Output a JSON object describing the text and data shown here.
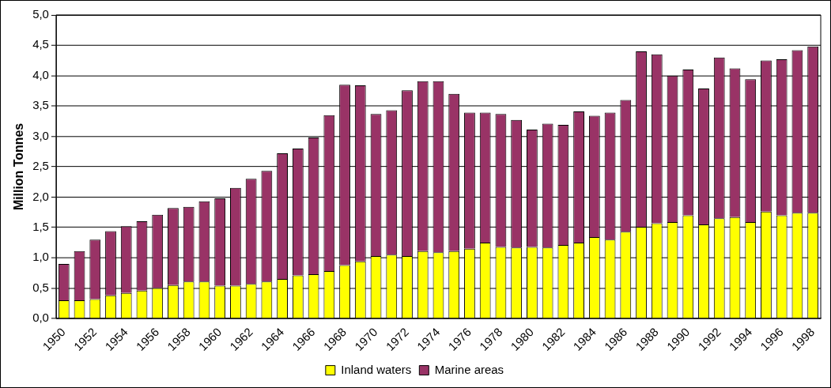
{
  "chart_data": {
    "type": "bar",
    "stacked": true,
    "ylabel": "Million Tonnes",
    "categories": [
      "1950",
      null,
      "1952",
      null,
      "1954",
      null,
      "1956",
      null,
      "1958",
      null,
      "1960",
      null,
      "1962",
      null,
      "1964",
      null,
      "1966",
      null,
      "1968",
      null,
      "1970",
      null,
      "1972",
      null,
      "1974",
      null,
      "1976",
      null,
      "1978",
      null,
      "1980",
      null,
      "1982",
      null,
      "1984",
      null,
      "1986",
      null,
      "1988",
      null,
      "1990",
      null,
      "1992",
      null,
      "1994",
      null,
      "1996",
      null,
      "1998"
    ],
    "series": [
      {
        "name": "Inland waters",
        "color": "#ffff00",
        "values": [
          0.3,
          0.3,
          0.32,
          0.38,
          0.42,
          0.46,
          0.5,
          0.55,
          0.61,
          0.61,
          0.54,
          0.54,
          0.57,
          0.61,
          0.65,
          0.71,
          0.73,
          0.78,
          0.88,
          0.94,
          1.03,
          1.05,
          1.03,
          1.11,
          1.09,
          1.11,
          1.15,
          1.25,
          1.18,
          1.17,
          1.18,
          1.17,
          1.21,
          1.25,
          1.34,
          1.3,
          1.43,
          1.51,
          1.57,
          1.59,
          1.7,
          1.55,
          1.65,
          1.67,
          1.59,
          1.76,
          1.7,
          1.74,
          1.74
        ]
      },
      {
        "name": "Marine areas",
        "color": "#993366",
        "values": [
          0.6,
          0.81,
          0.98,
          1.06,
          1.1,
          1.14,
          1.21,
          1.27,
          1.23,
          1.32,
          1.44,
          1.61,
          1.73,
          1.82,
          2.07,
          2.09,
          2.25,
          2.57,
          2.97,
          2.9,
          2.34,
          2.38,
          2.73,
          2.8,
          2.82,
          2.59,
          2.24,
          2.14,
          2.19,
          2.1,
          1.93,
          2.04,
          1.98,
          2.16,
          2.0,
          2.09,
          2.17,
          2.89,
          2.78,
          2.41,
          2.4,
          2.24,
          2.65,
          2.45,
          2.35,
          2.49,
          2.57,
          2.68,
          2.74
        ]
      }
    ],
    "ylim": [
      0,
      5
    ],
    "yticks": [
      {
        "value": 0,
        "label": "0,0"
      },
      {
        "value": 0.5,
        "label": "0,5"
      },
      {
        "value": 1,
        "label": "1,0"
      },
      {
        "value": 1.5,
        "label": "1,5"
      },
      {
        "value": 2,
        "label": "2,0"
      },
      {
        "value": 2.5,
        "label": "2,5"
      },
      {
        "value": 3,
        "label": "3,0"
      },
      {
        "value": 3.5,
        "label": "3,5"
      },
      {
        "value": 4,
        "label": "4,0"
      },
      {
        "value": 4.5,
        "label": "4,5"
      },
      {
        "value": 5,
        "label": "5,0"
      }
    ],
    "grid": "y",
    "legend": "bottom"
  }
}
